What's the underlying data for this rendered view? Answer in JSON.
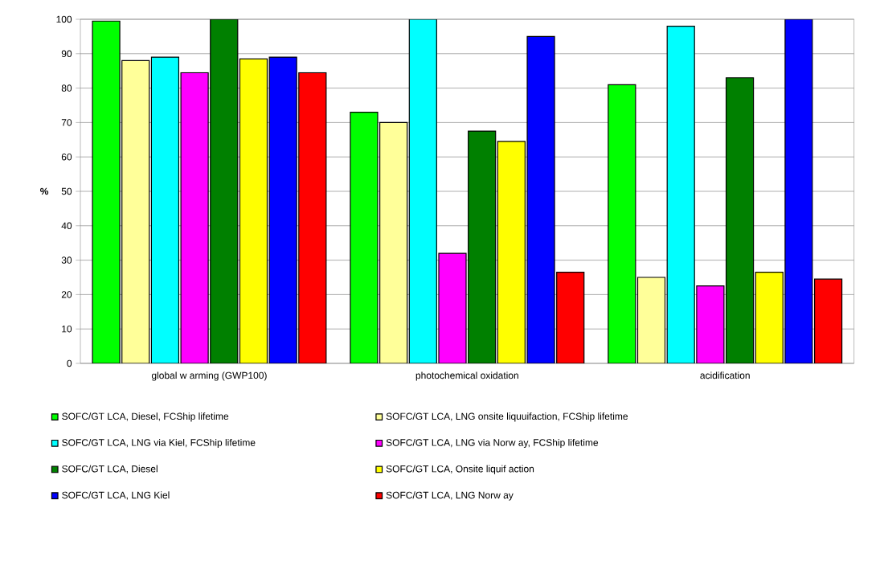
{
  "chart_data": {
    "type": "bar",
    "ylabel": "%",
    "categories": [
      "global w arming (GWP100)",
      "photochemical oxidation",
      "acidification"
    ],
    "series": [
      {
        "name": "SOFC/GT LCA, Diesel, FCShip lifetime",
        "color": "#00ff00",
        "values": [
          99.5,
          73,
          81
        ]
      },
      {
        "name": "SOFC/GT LCA, LNG onsite liquuifaction, FCShip lifetime",
        "color": "#ffff99",
        "values": [
          88,
          70,
          25
        ]
      },
      {
        "name": "SOFC/GT LCA, LNG via Kiel, FCShip lifetime",
        "color": "#00ffff",
        "values": [
          89,
          100,
          98
        ]
      },
      {
        "name": "SOFC/GT LCA, LNG via Norw ay, FCShip lifetime",
        "color": "#ff00ff",
        "values": [
          84.5,
          32,
          22.5
        ]
      },
      {
        "name": "SOFC/GT LCA, Diesel",
        "color": "#008000",
        "values": [
          100,
          67.5,
          83
        ]
      },
      {
        "name": "SOFC/GT LCA, Onsite liquif action",
        "color": "#ffff00",
        "values": [
          88.5,
          64.5,
          26.5
        ]
      },
      {
        "name": "SOFC/GT LCA, LNG Kiel",
        "color": "#0000ff",
        "values": [
          89,
          95,
          100
        ]
      },
      {
        "name": "SOFC/GT LCA, LNG Norw ay",
        "color": "#ff0000",
        "values": [
          84.5,
          26.5,
          24.5
        ]
      }
    ],
    "ylim": [
      0,
      100
    ],
    "yticks": [
      0,
      10,
      20,
      30,
      40,
      50,
      60,
      70,
      80,
      90,
      100
    ],
    "grid": "y",
    "legend": "bottom"
  }
}
